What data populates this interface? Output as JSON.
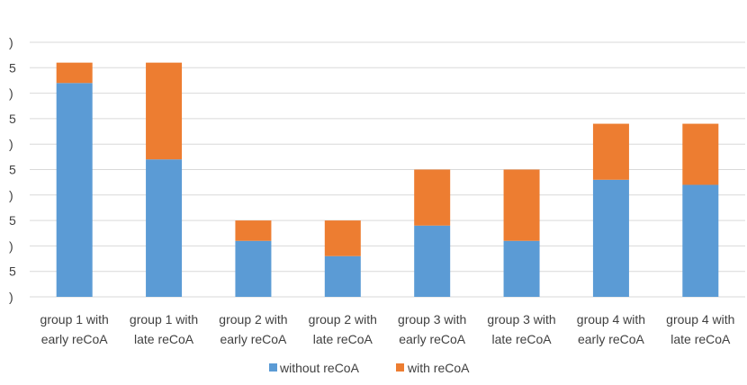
{
  "chart_data": {
    "type": "bar",
    "stacked": true,
    "categories": [
      [
        "group 1 with",
        "early reCoA"
      ],
      [
        "group 1 with",
        "late reCoA"
      ],
      [
        "group 2 with",
        "early reCoA"
      ],
      [
        "group 2 with",
        "late reCoA"
      ],
      [
        "group 3 with",
        "early reCoA"
      ],
      [
        "group 3 with",
        "late reCoA"
      ],
      [
        "group 4 with",
        "early reCoA"
      ],
      [
        "group 4 with",
        "late reCoA"
      ]
    ],
    "series": [
      {
        "name": "without reCoA",
        "color": "#5b9bd5",
        "values": [
          42,
          27,
          11,
          8,
          14,
          11,
          23,
          22
        ]
      },
      {
        "name": "with reCoA",
        "color": "#ed7d31",
        "values": [
          4,
          19,
          4,
          7,
          11,
          14,
          11,
          12
        ]
      }
    ],
    "ylim": [
      0,
      50
    ],
    "ytick_step": 5,
    "ytick_labels": [
      ")",
      "5",
      ")",
      "5",
      ")",
      "5",
      ")",
      "5",
      ")",
      "5",
      ")"
    ],
    "grid": true,
    "legend_position": "bottom"
  }
}
